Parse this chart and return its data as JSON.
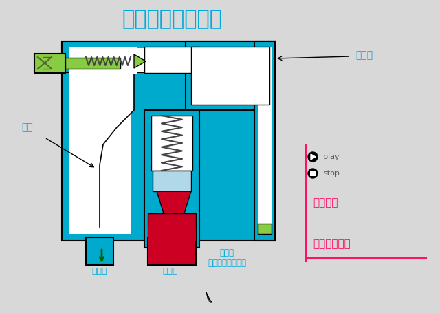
{
  "title": "当进油压力升高时",
  "title_color": "#00AADD",
  "title_fontsize": 22,
  "bg_color": "#D8D8D8",
  "cyan_color": "#00AACC",
  "dark_color": "#1A1A1A",
  "green_color": "#88CC44",
  "red_color": "#CC0022",
  "white_color": "#FFFFFF",
  "label_color": "#00AADD",
  "pink_color": "#FF1166",
  "label_zhujian": "主阀",
  "label_xiandao": "先导阀",
  "label_chuyoukou": "出油口",
  "label_jinyoukou": "进油口",
  "label_waikoukou": "外控口\n（一般是堵塞的）",
  "label_play": "play",
  "label_stop": "stop",
  "label_zhubu": "逐步显示",
  "label_dangyl": "当压力不高时"
}
